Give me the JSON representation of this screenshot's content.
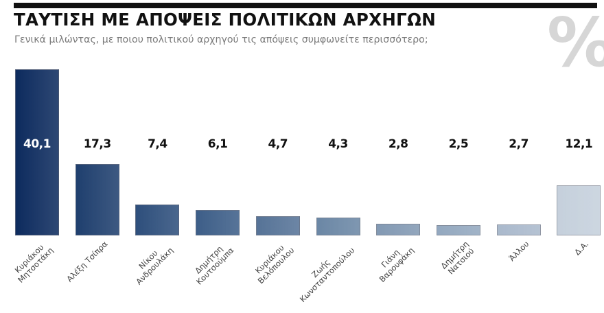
{
  "header": {
    "title": "ΤΑΥΤΙΣΗ ΜΕ ΑΠΟΨΕΙΣ ΠΟΛΙΤΙΚΩΝ ΑΡΧΗΓΩΝ",
    "subtitle": "Γενικά μιλώντας, με ποιου πολιτικού αρχηγού τις απόψεις συμφωνείτε περισσότερο;",
    "percent_symbol": "%"
  },
  "chart_data": {
    "type": "bar",
    "title": "ΤΑΥΤΙΣΗ ΜΕ ΑΠΟΨΕΙΣ ΠΟΛΙΤΙΚΩΝ ΑΡΧΗΓΩΝ",
    "subtitle": "Γενικά μιλώντας, με ποιου πολιτικού αρχηγού τις απόψεις συμφωνείτε περισσότερο;",
    "unit": "%",
    "categories": [
      "Κυριάκου Μητσοτάκη",
      "Αλέξη Τσίπρα",
      "Νίκου Ανδρουλάκη",
      "Δημήτρη Κουτσούμπα",
      "Κυριάκου Βελόπουλου",
      "Ζωής Κωνσταντοπούλου",
      "Γιάνη Βαρουφάκη",
      "Δημήτρη Νατσιού",
      "Άλλου",
      "Δ.Α."
    ],
    "values": [
      40.1,
      17.3,
      7.4,
      6.1,
      4.7,
      4.3,
      2.8,
      2.5,
      2.7,
      12.1
    ],
    "value_labels": [
      "40,1",
      "17,3",
      "7,4",
      "6,1",
      "4,7",
      "4,3",
      "2,8",
      "2,5",
      "2,7",
      "12,1"
    ],
    "xlabel": "",
    "ylabel": "",
    "ylim": [
      0,
      45
    ],
    "grid": false,
    "legend": "none",
    "colors": [
      "#0d2b5e",
      "#1f3f6e",
      "#2e4f7c",
      "#3d5e88",
      "#567397",
      "#6b87a5",
      "#8299b3",
      "#93a8bf",
      "#aab9cc",
      "#c5d0dc"
    ]
  },
  "bars": [
    {
      "label_lines": [
        "Κυριάκου",
        "Μητσοτάκη"
      ],
      "value": "40,1"
    },
    {
      "label_lines": [
        "Αλέξη Τσίπρα"
      ],
      "value": "17,3"
    },
    {
      "label_lines": [
        "Νίκου",
        "Ανδρουλάκη"
      ],
      "value": "7,4"
    },
    {
      "label_lines": [
        "Δημήτρη",
        "Κουτσούμπα"
      ],
      "value": "6,1"
    },
    {
      "label_lines": [
        "Κυριάκου",
        "Βελόπουλου"
      ],
      "value": "4,7"
    },
    {
      "label_lines": [
        "Ζωής",
        "Κωνσταντοπούλου"
      ],
      "value": "4,3"
    },
    {
      "label_lines": [
        "Γιάνη",
        "Βαρουφάκη"
      ],
      "value": "2,8"
    },
    {
      "label_lines": [
        "Δημήτρη",
        "Νατσιού"
      ],
      "value": "2,5"
    },
    {
      "label_lines": [
        "Άλλου"
      ],
      "value": "2,7"
    },
    {
      "label_lines": [
        "Δ.Α."
      ],
      "value": "12,1"
    }
  ]
}
